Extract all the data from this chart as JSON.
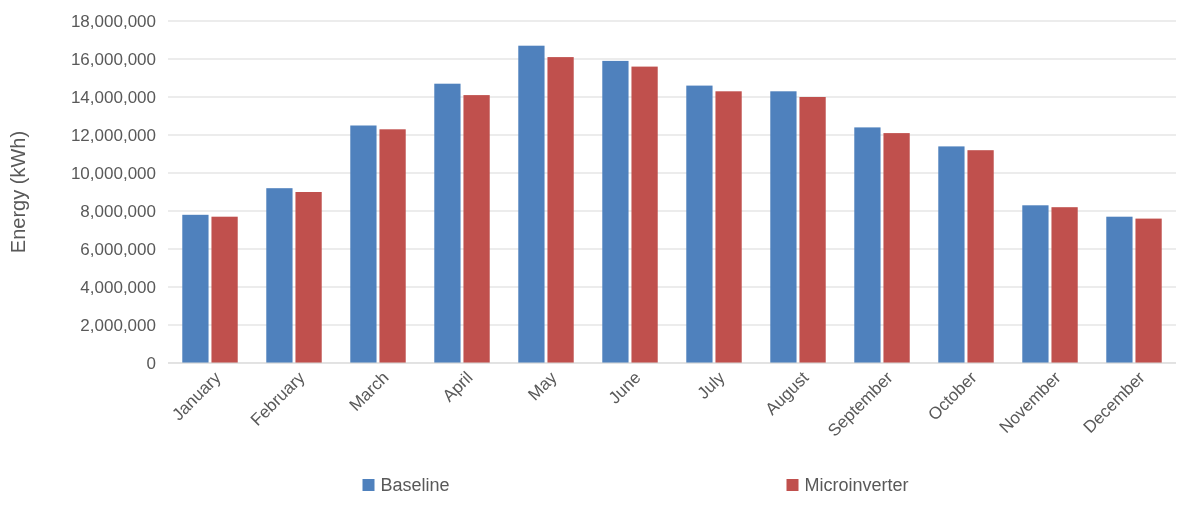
{
  "chart_data": {
    "type": "bar",
    "ylabel": "Energy (kWh)",
    "categories": [
      "January",
      "February",
      "March",
      "April",
      "May",
      "June",
      "July",
      "August",
      "September",
      "October",
      "November",
      "December"
    ],
    "series": [
      {
        "name": "Baseline",
        "color": "#4f81bd",
        "values": [
          7800000,
          9200000,
          12500000,
          14700000,
          16700000,
          15900000,
          14600000,
          14300000,
          12400000,
          11400000,
          8300000,
          7700000
        ]
      },
      {
        "name": "Microinverter",
        "color": "#c0504d",
        "values": [
          7700000,
          9000000,
          12300000,
          14100000,
          16100000,
          15600000,
          14300000,
          14000000,
          12100000,
          11200000,
          8200000,
          7600000
        ]
      }
    ],
    "ylim": [
      0,
      18000000
    ],
    "yticks": [
      {
        "value": 0,
        "label": "0"
      },
      {
        "value": 2000000,
        "label": "2,000,000"
      },
      {
        "value": 4000000,
        "label": "4,000,000"
      },
      {
        "value": 6000000,
        "label": "6,000,000"
      },
      {
        "value": 8000000,
        "label": "8,000,000"
      },
      {
        "value": 10000000,
        "label": "10,000,000"
      },
      {
        "value": 12000000,
        "label": "12,000,000"
      },
      {
        "value": 14000000,
        "label": "14,000,000"
      },
      {
        "value": 16000000,
        "label": "16,000,000"
      },
      {
        "value": 18000000,
        "label": "18,000,000"
      }
    ],
    "grid": "y",
    "legend": "bottom"
  }
}
